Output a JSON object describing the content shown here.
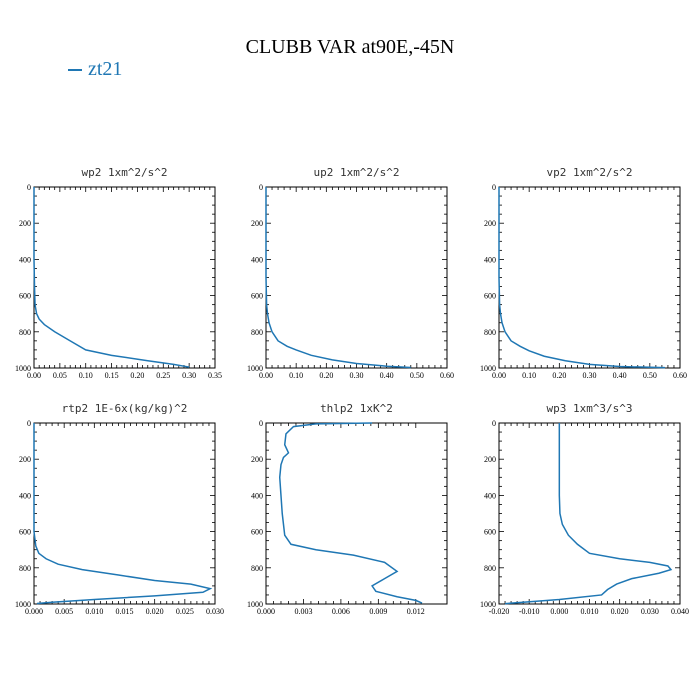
{
  "title": "CLUBB VAR at90E,-45N",
  "legend": {
    "label": "zt21",
    "color": "#1f77b4"
  },
  "chart_data": [
    {
      "type": "line",
      "title": "wp2  1xm^2/s^2",
      "series_name": "zt21",
      "xlim": [
        0,
        0.35
      ],
      "ylim": [
        1000,
        0
      ],
      "xticks": [
        0,
        0.05,
        0.1,
        0.15,
        0.2,
        0.25,
        0.3,
        0.35
      ],
      "xtick_labels": [
        "0.00",
        "0.05",
        "0.10",
        "0.15",
        "0.20",
        "0.25",
        "0.30",
        "0.35"
      ],
      "yticks": [
        0,
        200,
        400,
        600,
        800,
        1000
      ],
      "ytick_labels": [
        "0",
        "200",
        "400",
        "600",
        "800",
        "1000"
      ],
      "x": [
        0,
        0,
        0.001,
        0.002,
        0.005,
        0.01,
        0.02,
        0.04,
        0.07,
        0.1,
        0.15,
        0.22,
        0.27,
        0.29,
        0.3
      ],
      "y": [
        0,
        400,
        550,
        650,
        700,
        730,
        760,
        800,
        850,
        900,
        930,
        960,
        980,
        990,
        995
      ]
    },
    {
      "type": "line",
      "title": "up2  1xm^2/s^2",
      "series_name": "zt21",
      "xlim": [
        0,
        0.6
      ],
      "ylim": [
        1000,
        0
      ],
      "xticks": [
        0,
        0.1,
        0.2,
        0.3,
        0.4,
        0.5,
        0.6
      ],
      "xtick_labels": [
        "0.00",
        "0.10",
        "0.20",
        "0.30",
        "0.40",
        "0.50",
        "0.60"
      ],
      "yticks": [
        0,
        200,
        400,
        600,
        800,
        1000
      ],
      "ytick_labels": [
        "0",
        "200",
        "400",
        "600",
        "800",
        "1000"
      ],
      "x": [
        0,
        0,
        0.002,
        0.005,
        0.01,
        0.02,
        0.04,
        0.07,
        0.1,
        0.15,
        0.22,
        0.3,
        0.4,
        0.48
      ],
      "y": [
        0,
        500,
        650,
        700,
        750,
        800,
        850,
        880,
        900,
        930,
        955,
        975,
        990,
        997
      ]
    },
    {
      "type": "line",
      "title": "vp2  1xm^2/s^2",
      "series_name": "zt21",
      "xlim": [
        0,
        0.6
      ],
      "ylim": [
        1000,
        0
      ],
      "xticks": [
        0,
        0.1,
        0.2,
        0.3,
        0.4,
        0.5,
        0.6
      ],
      "xtick_labels": [
        "0.00",
        "0.10",
        "0.20",
        "0.30",
        "0.40",
        "0.50",
        "0.60"
      ],
      "yticks": [
        0,
        200,
        400,
        600,
        800,
        1000
      ],
      "ytick_labels": [
        "0",
        "200",
        "400",
        "600",
        "800",
        "1000"
      ],
      "x": [
        0,
        0,
        0.002,
        0.005,
        0.01,
        0.02,
        0.04,
        0.07,
        0.1,
        0.15,
        0.22,
        0.3,
        0.4,
        0.55
      ],
      "y": [
        0,
        500,
        650,
        700,
        750,
        800,
        850,
        880,
        905,
        935,
        960,
        980,
        992,
        998
      ]
    },
    {
      "type": "line",
      "title": "rtp2  1E-6x(kg/kg)^2",
      "series_name": "zt21",
      "xlim": [
        0,
        0.03
      ],
      "ylim": [
        1000,
        0
      ],
      "xticks": [
        0,
        0.005,
        0.01,
        0.015,
        0.02,
        0.025,
        0.03
      ],
      "xtick_labels": [
        "0.000",
        "0.005",
        "0.010",
        "0.015",
        "0.020",
        "0.025",
        "0.030"
      ],
      "yticks": [
        0,
        200,
        400,
        600,
        800,
        1000
      ],
      "ytick_labels": [
        "0",
        "200",
        "400",
        "600",
        "800",
        "1000"
      ],
      "x": [
        0,
        0,
        0.0003,
        0.0008,
        0.002,
        0.004,
        0.008,
        0.014,
        0.02,
        0.026,
        0.0292,
        0.028,
        0.02,
        0.01,
        0.003,
        0.0005
      ],
      "y": [
        0,
        600,
        680,
        720,
        750,
        780,
        810,
        840,
        870,
        890,
        915,
        935,
        955,
        975,
        990,
        997
      ]
    },
    {
      "type": "line",
      "title": "thlp2  1xK^2",
      "series_name": "zt21",
      "xlim": [
        0,
        0.0145
      ],
      "ylim": [
        1000,
        0
      ],
      "xticks": [
        0,
        0.003,
        0.006,
        0.009,
        0.012
      ],
      "xtick_labels": [
        "0.000",
        "0.003",
        "0.006",
        "0.009",
        "0.012"
      ],
      "yticks": [
        0,
        200,
        400,
        600,
        800,
        1000
      ],
      "ytick_labels": [
        "0",
        "200",
        "400",
        "600",
        "800",
        "1000"
      ],
      "x": [
        0.0085,
        0.004,
        0.0022,
        0.0016,
        0.0015,
        0.0018,
        0.0014,
        0.0012,
        0.0011,
        0.0012,
        0.0013,
        0.0014,
        0.0015,
        0.002,
        0.004,
        0.007,
        0.0095,
        0.0105,
        0.0095,
        0.0085,
        0.0088,
        0.0105,
        0.012,
        0.0125
      ],
      "y": [
        0,
        5,
        20,
        60,
        120,
        165,
        190,
        230,
        300,
        400,
        500,
        560,
        620,
        670,
        700,
        730,
        770,
        820,
        860,
        900,
        930,
        960,
        980,
        995
      ]
    },
    {
      "type": "line",
      "title": "wp3  1xm^3/s^3",
      "series_name": "zt21",
      "xlim": [
        -0.02,
        0.04
      ],
      "ylim": [
        1000,
        0
      ],
      "xticks": [
        -0.02,
        -0.01,
        0,
        0.01,
        0.02,
        0.03,
        0.04
      ],
      "xtick_labels": [
        "-0.020",
        "-0.010",
        "0.000",
        "0.010",
        "0.020",
        "0.030",
        "0.040"
      ],
      "yticks": [
        0,
        200,
        400,
        600,
        800,
        1000
      ],
      "ytick_labels": [
        "0",
        "200",
        "400",
        "600",
        "800",
        "1000"
      ],
      "x": [
        0,
        0,
        0.0002,
        0.001,
        0.003,
        0.006,
        0.01,
        0.02,
        0.03,
        0.036,
        0.037,
        0.033,
        0.024,
        0.019,
        0.016,
        0.014,
        0,
        -0.012,
        -0.018
      ],
      "y": [
        0,
        400,
        500,
        560,
        620,
        670,
        720,
        750,
        770,
        790,
        810,
        830,
        860,
        890,
        920,
        950,
        975,
        990,
        998
      ]
    }
  ]
}
